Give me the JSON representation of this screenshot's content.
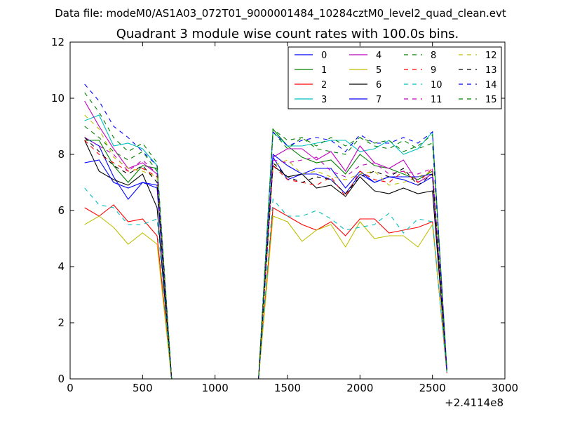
{
  "chart_data": {
    "type": "line",
    "suptitle": "Data file: modeM0/AS1A03_072T01_9000001484_10284cztM0_level2_quad_clean.evt",
    "title": "Quadrant 3 module wise count rates with 100.0s bins.",
    "xlabel": "",
    "ylabel": "",
    "x_offset_label": "+2.4114e8",
    "xlim": [
      0,
      3000
    ],
    "ylim": [
      0,
      12
    ],
    "xticks": [
      0,
      500,
      1000,
      1500,
      2000,
      2500,
      3000
    ],
    "yticks": [
      0,
      2,
      4,
      6,
      8,
      10,
      12
    ],
    "grid": false,
    "legend_placement": "top-right",
    "legend_columns": 4,
    "x": [
      100,
      200,
      300,
      400,
      500,
      600,
      700,
      800,
      900,
      1000,
      1100,
      1200,
      1300,
      1400,
      1500,
      1600,
      1700,
      1800,
      1900,
      2000,
      2100,
      2200,
      2300,
      2400,
      2500,
      2600
    ],
    "series": [
      {
        "name": "0",
        "color": "#0000ff",
        "dash": "solid",
        "values": [
          8.6,
          8.3,
          7.2,
          6.4,
          7.0,
          6.8,
          0,
          0,
          0,
          0,
          0,
          0,
          0,
          7.9,
          7.1,
          7.3,
          7.3,
          7.1,
          6.6,
          7.3,
          7.0,
          7.2,
          7.1,
          6.9,
          7.2,
          0.3
        ]
      },
      {
        "name": "1",
        "color": "#008000",
        "dash": "solid",
        "values": [
          8.5,
          8.5,
          7.6,
          7.0,
          7.6,
          7.5,
          0,
          0,
          0,
          0,
          0,
          0,
          0,
          8.9,
          8.3,
          7.9,
          7.7,
          7.8,
          7.3,
          8.0,
          7.6,
          7.5,
          7.3,
          7.1,
          7.4,
          0.3
        ]
      },
      {
        "name": "2",
        "color": "#ff0000",
        "dash": "solid",
        "values": [
          6.1,
          5.8,
          6.2,
          5.6,
          5.7,
          5.1,
          0,
          0,
          0,
          0,
          0,
          0,
          0,
          6.1,
          5.8,
          5.5,
          5.3,
          5.6,
          5.1,
          5.7,
          5.7,
          5.2,
          5.3,
          5.4,
          5.6,
          0.2
        ]
      },
      {
        "name": "3",
        "color": "#00bfbf",
        "dash": "solid",
        "values": [
          9.2,
          9.4,
          8.3,
          8.4,
          8.2,
          7.6,
          0,
          0,
          0,
          0,
          0,
          0,
          0,
          8.8,
          8.3,
          8.3,
          8.4,
          8.5,
          8.5,
          8.1,
          8.2,
          8.5,
          8.0,
          8.2,
          8.8,
          0.3
        ]
      },
      {
        "name": "4",
        "color": "#bf00bf",
        "dash": "solid",
        "values": [
          9.9,
          9.0,
          8.2,
          7.5,
          7.7,
          7.3,
          0,
          0,
          0,
          0,
          0,
          0,
          0,
          7.9,
          8.2,
          8.2,
          7.8,
          8.1,
          7.4,
          8.3,
          7.7,
          7.5,
          7.8,
          7.0,
          7.3,
          0.3
        ]
      },
      {
        "name": "5",
        "color": "#bfbf00",
        "dash": "solid",
        "values": [
          5.5,
          5.8,
          5.4,
          4.8,
          5.2,
          4.8,
          0,
          0,
          0,
          0,
          0,
          0,
          0,
          5.8,
          5.6,
          4.9,
          5.3,
          5.5,
          4.7,
          5.6,
          5.0,
          5.1,
          5.1,
          4.7,
          5.5,
          0.3
        ]
      },
      {
        "name": "6",
        "color": "#000000",
        "dash": "solid",
        "values": [
          8.5,
          7.4,
          7.1,
          6.9,
          7.3,
          6.1,
          0,
          0,
          0,
          0,
          0,
          0,
          0,
          7.6,
          7.2,
          7.3,
          6.8,
          6.9,
          6.5,
          7.2,
          6.7,
          6.6,
          6.8,
          6.6,
          6.7,
          0.3
        ]
      },
      {
        "name": "7",
        "color": "#0000ff",
        "dash": "solid",
        "values": [
          7.7,
          7.8,
          7.0,
          6.8,
          7.0,
          6.9,
          0,
          0,
          0,
          0,
          0,
          0,
          0,
          8.0,
          7.6,
          7.3,
          7.5,
          7.5,
          6.8,
          7.4,
          7.0,
          7.2,
          7.2,
          7.2,
          7.3,
          0.3
        ]
      },
      {
        "name": "8",
        "color": "#008000",
        "dash": "dashed",
        "values": [
          9.0,
          8.6,
          8.1,
          7.8,
          8.1,
          7.4,
          0,
          0,
          0,
          0,
          0,
          0,
          0,
          8.8,
          8.2,
          8.6,
          8.2,
          8.1,
          8.0,
          8.6,
          8.3,
          8.2,
          8.5,
          8.2,
          8.4,
          0.3
        ]
      },
      {
        "name": "9",
        "color": "#ff0000",
        "dash": "dashed",
        "values": [
          8.5,
          8.0,
          7.7,
          7.4,
          7.5,
          7.2,
          0,
          0,
          0,
          0,
          0,
          0,
          0,
          7.6,
          7.1,
          7.0,
          6.9,
          7.2,
          6.5,
          7.4,
          7.1,
          7.0,
          7.4,
          7.0,
          7.5,
          0.3
        ]
      },
      {
        "name": "10",
        "color": "#00bfbf",
        "dash": "dashed",
        "values": [
          6.8,
          6.2,
          6.1,
          5.5,
          5.5,
          5.7,
          0,
          0,
          0,
          0,
          0,
          0,
          0,
          6.4,
          5.8,
          5.8,
          6.0,
          5.7,
          5.3,
          5.4,
          5.5,
          5.9,
          5.2,
          5.7,
          5.6,
          0.2
        ]
      },
      {
        "name": "11",
        "color": "#bf00bf",
        "dash": "dashed",
        "values": [
          8.6,
          8.3,
          8.0,
          7.4,
          7.8,
          7.3,
          0,
          0,
          0,
          0,
          0,
          0,
          0,
          7.8,
          7.7,
          7.8,
          7.9,
          7.4,
          7.2,
          7.6,
          7.7,
          7.3,
          7.4,
          7.3,
          7.5,
          0.3
        ]
      },
      {
        "name": "12",
        "color": "#bfbf00",
        "dash": "dashed",
        "values": [
          9.4,
          8.9,
          7.9,
          7.5,
          7.4,
          7.2,
          0,
          0,
          0,
          0,
          0,
          0,
          0,
          7.6,
          7.8,
          7.3,
          7.4,
          7.2,
          7.1,
          7.3,
          7.4,
          6.9,
          7.0,
          7.2,
          7.4,
          0.3
        ]
      },
      {
        "name": "13",
        "color": "#000000",
        "dash": "dashed",
        "values": [
          8.6,
          8.1,
          7.6,
          7.3,
          7.6,
          7.0,
          0,
          0,
          0,
          0,
          0,
          0,
          0,
          7.7,
          7.2,
          7.0,
          7.2,
          7.1,
          6.6,
          7.2,
          7.4,
          7.2,
          7.5,
          6.9,
          7.3,
          0.3
        ]
      },
      {
        "name": "14",
        "color": "#0000ff",
        "dash": "dashed",
        "values": [
          10.5,
          9.9,
          9.0,
          8.6,
          8.1,
          7.6,
          0,
          0,
          0,
          0,
          0,
          0,
          0,
          8.8,
          8.3,
          8.5,
          8.6,
          8.5,
          8.1,
          8.7,
          8.4,
          8.4,
          8.6,
          8.4,
          8.8,
          0.3
        ]
      },
      {
        "name": "15",
        "color": "#008000",
        "dash": "dashed",
        "values": [
          10.2,
          9.5,
          8.6,
          8.1,
          8.4,
          7.7,
          0,
          0,
          0,
          0,
          0,
          0,
          0,
          8.9,
          8.5,
          8.6,
          8.3,
          8.6,
          8.3,
          8.6,
          8.4,
          8.5,
          8.1,
          8.3,
          8.7,
          0.3
        ]
      }
    ]
  }
}
